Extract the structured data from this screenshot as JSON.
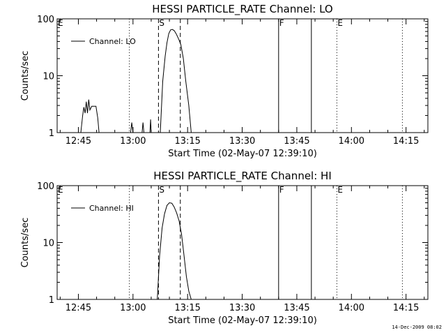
{
  "chart_data": [
    {
      "type": "line",
      "title": "HESSI PARTICLE_RATE Channel: LO",
      "xlabel": "Start Time (02-May-07 12:39:10)",
      "ylabel": "Counts/sec",
      "yscale": "log",
      "ylim": [
        1,
        100
      ],
      "xlim": [
        "12:39:10",
        "14:21:00"
      ],
      "yticks": [
        "1",
        "10",
        "100"
      ],
      "xticks": [
        "12:45",
        "13:00",
        "13:15",
        "13:30",
        "13:45",
        "14:00",
        "14:15"
      ],
      "legend": {
        "label": "Channel: LO",
        "position": "top-left"
      },
      "markers": [
        {
          "label": "E",
          "time": "12:39:10",
          "style": "none"
        },
        {
          "label": "",
          "time": "12:59:00",
          "style": "dotted"
        },
        {
          "label": "S",
          "time": "13:07:00",
          "style": "dashed"
        },
        {
          "label": "",
          "time": "13:13:00",
          "style": "dashed"
        },
        {
          "label": "F",
          "time": "13:40:00",
          "style": "solid"
        },
        {
          "label": "",
          "time": "13:49:00",
          "style": "solid"
        },
        {
          "label": "E",
          "time": "13:56:00",
          "style": "dotted"
        },
        {
          "label": "",
          "time": "14:14:00",
          "style": "dotted"
        }
      ],
      "series": [
        {
          "name": "Channel: LO",
          "x": [
            "12:45:40",
            "12:46:10",
            "12:46:30",
            "12:46:50",
            "12:47:10",
            "12:47:30",
            "12:47:50",
            "12:48:10",
            "12:48:40",
            "12:49:20",
            "12:49:50",
            "12:50:20",
            "12:50:40"
          ],
          "y": [
            1,
            2.0,
            2.8,
            2.2,
            3.5,
            2.2,
            3.8,
            2.5,
            2.9,
            2.9,
            2.9,
            1.8,
            1
          ]
        },
        {
          "name": "",
          "x": [
            "12:59:20",
            "12:59:40",
            "13:00:00"
          ],
          "y": [
            1,
            1.5,
            1
          ]
        },
        {
          "name": "",
          "x": [
            "13:02:30",
            "13:02:45",
            "13:03:00"
          ],
          "y": [
            1,
            1.5,
            1
          ]
        },
        {
          "name": "",
          "x": [
            "13:04:40",
            "13:04:50",
            "13:05:00"
          ],
          "y": [
            1,
            1.7,
            1
          ]
        },
        {
          "name": "",
          "x": [
            "13:07:30",
            "13:08:10",
            "13:08:50",
            "13:09:20",
            "13:09:50",
            "13:10:20",
            "13:10:50",
            "13:11:20",
            "13:11:50",
            "13:12:30",
            "13:13:10",
            "13:13:50",
            "13:14:30",
            "13:15:20",
            "13:16:00"
          ],
          "y": [
            1,
            8,
            22,
            38,
            55,
            64,
            65,
            62,
            55,
            45,
            35,
            20,
            8,
            3,
            1
          ]
        }
      ]
    },
    {
      "type": "line",
      "title": "HESSI PARTICLE_RATE Channel: HI",
      "xlabel": "Start Time (02-May-07 12:39:10)",
      "ylabel": "Counts/sec",
      "yscale": "log",
      "ylim": [
        1,
        100
      ],
      "xlim": [
        "12:39:10",
        "14:21:00"
      ],
      "yticks": [
        "1",
        "10",
        "100"
      ],
      "xticks": [
        "12:45",
        "13:00",
        "13:15",
        "13:30",
        "13:45",
        "14:00",
        "14:15"
      ],
      "legend": {
        "label": "Channel: HI",
        "position": "top-left"
      },
      "markers": [
        {
          "label": "E",
          "time": "12:39:10",
          "style": "none"
        },
        {
          "label": "",
          "time": "12:59:00",
          "style": "dotted"
        },
        {
          "label": "S",
          "time": "13:07:00",
          "style": "dashed"
        },
        {
          "label": "",
          "time": "13:13:00",
          "style": "dashed"
        },
        {
          "label": "F",
          "time": "13:40:00",
          "style": "solid"
        },
        {
          "label": "",
          "time": "13:49:00",
          "style": "solid"
        },
        {
          "label": "E",
          "time": "13:56:00",
          "style": "dotted"
        },
        {
          "label": "",
          "time": "14:14:00",
          "style": "dotted"
        }
      ],
      "series": [
        {
          "name": "Channel: HI",
          "x": [
            "13:06:40",
            "13:07:20",
            "13:08:00",
            "13:08:40",
            "13:09:20",
            "13:10:00",
            "13:10:40",
            "13:11:20",
            "13:12:00",
            "13:12:40",
            "13:13:20",
            "13:14:00",
            "13:14:40",
            "13:15:20",
            "13:16:00"
          ],
          "y": [
            1,
            6,
            18,
            32,
            45,
            50,
            49,
            42,
            33,
            24,
            14,
            6,
            2.5,
            1.4,
            1
          ]
        }
      ]
    }
  ],
  "timestamp": "14-Dec-2009 08:02"
}
